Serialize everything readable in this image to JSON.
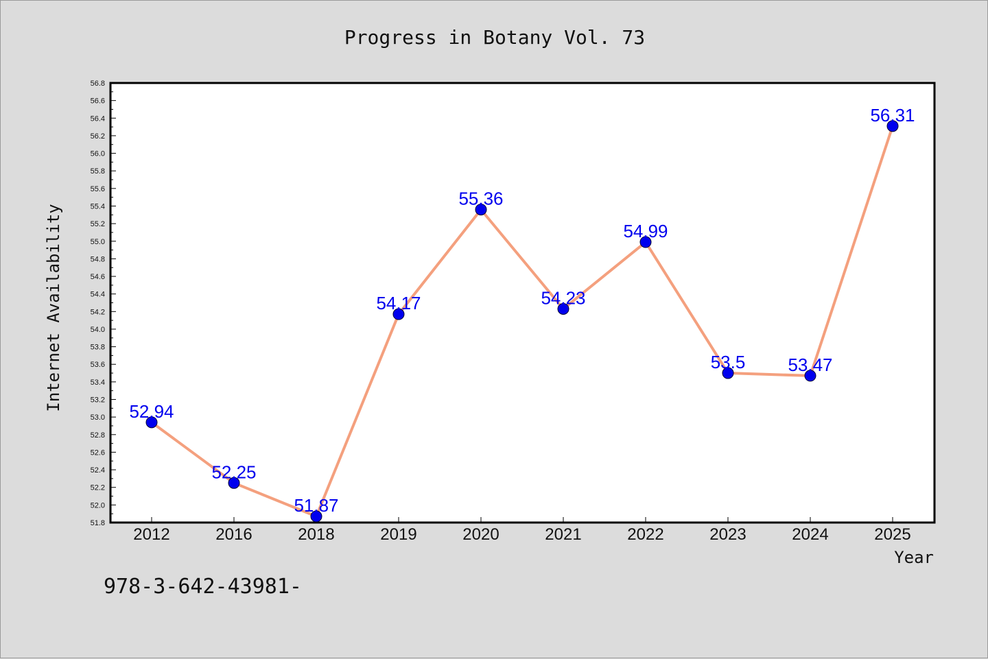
{
  "chart_data": {
    "type": "line",
    "title": "Progress in Botany Vol. 73",
    "xlabel": "Year",
    "ylabel": "Internet Availability",
    "categories": [
      "2012",
      "2016",
      "2018",
      "2019",
      "2020",
      "2021",
      "2022",
      "2023",
      "2024",
      "2025"
    ],
    "series": [
      {
        "values": [
          52.94,
          52.25,
          51.87,
          54.17,
          55.36,
          54.23,
          54.99,
          53.5,
          53.47,
          56.31
        ],
        "labels": [
          "52.94",
          "52.25",
          "51.87",
          "54.17",
          "55.36",
          "54.23",
          "54.99",
          "53.5",
          "53.47",
          "56.31"
        ]
      }
    ],
    "ylim": [
      51.8,
      56.8
    ],
    "yticks": [
      "51.8",
      "52.0",
      "52.2",
      "52.4",
      "52.6",
      "52.8",
      "53.0",
      "53.2",
      "53.4",
      "53.6",
      "53.8",
      "54.0",
      "54.2",
      "54.4",
      "54.6",
      "54.8",
      "55.0",
      "55.2",
      "55.4",
      "55.6",
      "55.8",
      "56.0",
      "56.2",
      "56.4",
      "56.6",
      "56.8"
    ],
    "grid": false,
    "legend": "none",
    "colors": {
      "line": "#f4a07e",
      "marker": "#0000ee",
      "label": "#0000ee",
      "background": "#dcdcdc",
      "plot_background": "#ffffff"
    }
  },
  "footer_text": "978-3-642-43981-"
}
